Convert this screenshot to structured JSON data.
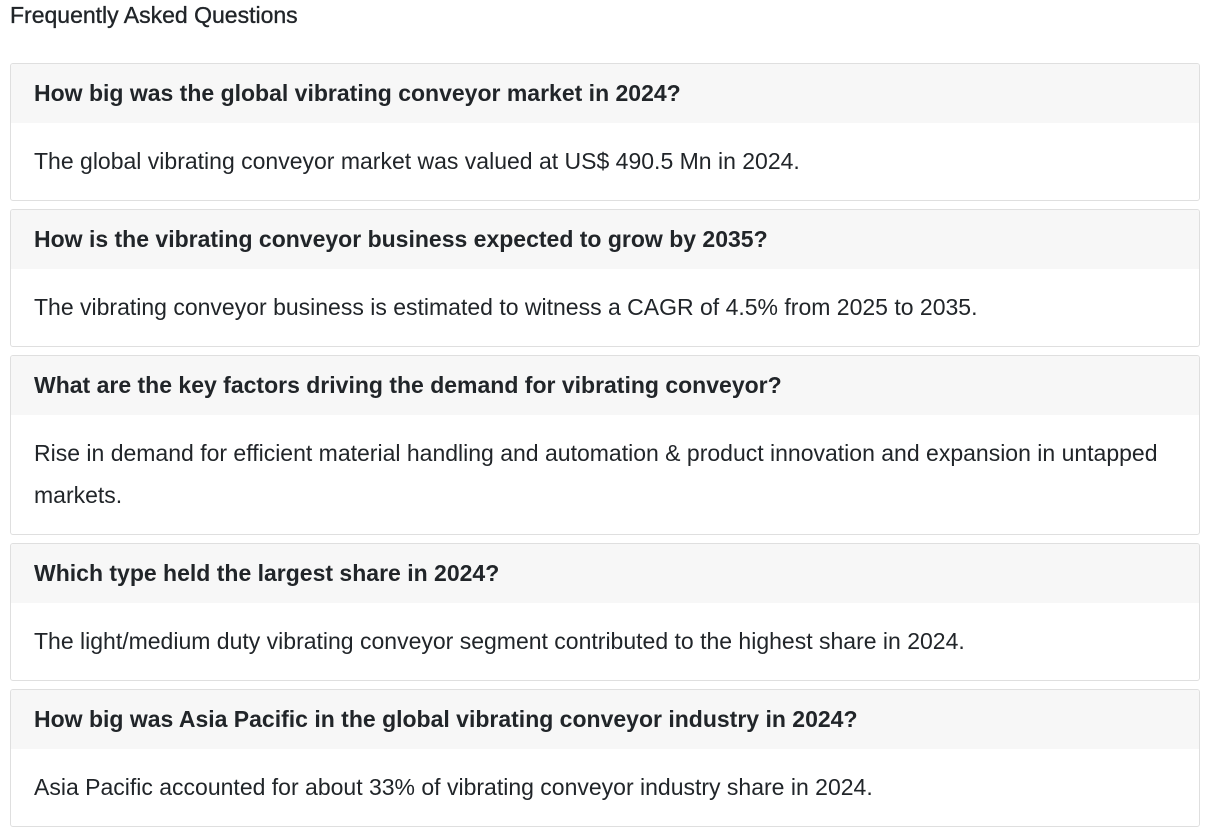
{
  "section": {
    "title": "Frequently Asked Questions"
  },
  "faqs": [
    {
      "question": "How big was the global vibrating conveyor market in 2024?",
      "answer": "The global vibrating conveyor market was valued at US$ 490.5 Mn in 2024."
    },
    {
      "question": "How is the vibrating conveyor business expected to grow by 2035?",
      "answer": "The vibrating conveyor business is estimated to witness a CAGR of 4.5% from 2025 to 2035."
    },
    {
      "question": "What are the key factors driving the demand for vibrating conveyor?",
      "answer": "Rise in demand for efficient material handling and automation & product innovation and expansion in untapped markets."
    },
    {
      "question": "Which type held the largest share in 2024?",
      "answer": "The light/medium duty vibrating conveyor segment contributed to the highest share in 2024."
    },
    {
      "question": "How big was Asia Pacific in the global vibrating conveyor industry in 2024?",
      "answer": "Asia Pacific accounted for about 33% of vibrating conveyor industry share in 2024."
    }
  ]
}
